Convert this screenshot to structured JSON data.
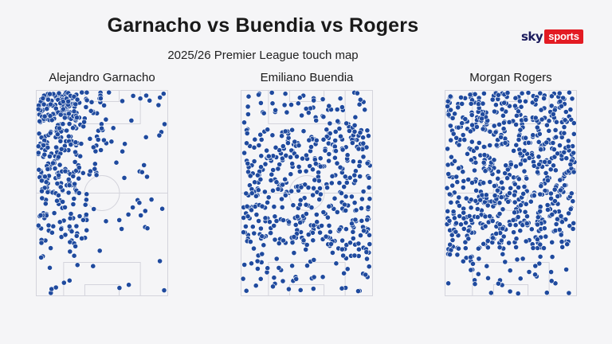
{
  "header": {
    "title": "Garnacho vs Buendia vs Rogers",
    "subtitle": "2025/26 Premier League touch map"
  },
  "brand": {
    "sky": "sky",
    "sports": "sports",
    "accent_color": "#e31b23",
    "navy_color": "#1a1a5c"
  },
  "colors": {
    "dot_fill": "#1f4a9e",
    "dot_stroke": "#ffffff",
    "pitch_line": "#d4d4dc",
    "background": "#f5f5f7"
  },
  "chart_data": [
    {
      "type": "scatter",
      "title": "Alejandro Garnacho",
      "xlabel": "",
      "ylabel": "",
      "xlim": [
        0,
        100
      ],
      "ylim": [
        0,
        100
      ],
      "grid": false,
      "note_scale": "x = width of pitch (0 left to 100 right), y = length of pitch (0 top to 100 bottom)",
      "zones": [
        {
          "x": [
            0,
            30
          ],
          "y": [
            0,
            14
          ],
          "count": 110
        },
        {
          "x": [
            28,
            50
          ],
          "y": [
            0,
            14
          ],
          "count": 24
        },
        {
          "x": [
            50,
            100
          ],
          "y": [
            0,
            16
          ],
          "count": 12
        },
        {
          "x": [
            0,
            32
          ],
          "y": [
            14,
            50
          ],
          "count": 140
        },
        {
          "x": [
            32,
            55
          ],
          "y": [
            14,
            42
          ],
          "count": 26
        },
        {
          "x": [
            55,
            100
          ],
          "y": [
            14,
            45
          ],
          "count": 14
        },
        {
          "x": [
            0,
            38
          ],
          "y": [
            50,
            75
          ],
          "count": 60
        },
        {
          "x": [
            38,
            100
          ],
          "y": [
            50,
            72
          ],
          "count": 14
        },
        {
          "x": [
            0,
            50
          ],
          "y": [
            75,
            100
          ],
          "count": 16
        },
        {
          "x": [
            50,
            100
          ],
          "y": [
            75,
            100
          ],
          "count": 4
        }
      ]
    },
    {
      "type": "scatter",
      "title": "Emiliano Buendia",
      "xlabel": "",
      "ylabel": "",
      "xlim": [
        0,
        100
      ],
      "ylim": [
        0,
        100
      ],
      "grid": false,
      "zones": [
        {
          "x": [
            0,
            100
          ],
          "y": [
            0,
            18
          ],
          "count": 55
        },
        {
          "x": [
            0,
            100
          ],
          "y": [
            18,
            50
          ],
          "count": 230
        },
        {
          "x": [
            0,
            100
          ],
          "y": [
            50,
            78
          ],
          "count": 185
        },
        {
          "x": [
            0,
            100
          ],
          "y": [
            78,
            100
          ],
          "count": 55
        }
      ]
    },
    {
      "type": "scatter",
      "title": "Morgan Rogers",
      "xlabel": "",
      "ylabel": "",
      "xlim": [
        0,
        100
      ],
      "ylim": [
        0,
        100
      ],
      "grid": false,
      "zones": [
        {
          "x": [
            0,
            100
          ],
          "y": [
            0,
            50
          ],
          "count": 420
        },
        {
          "x": [
            0,
            100
          ],
          "y": [
            50,
            78
          ],
          "count": 250
        },
        {
          "x": [
            0,
            100
          ],
          "y": [
            78,
            100
          ],
          "count": 45
        }
      ]
    }
  ]
}
